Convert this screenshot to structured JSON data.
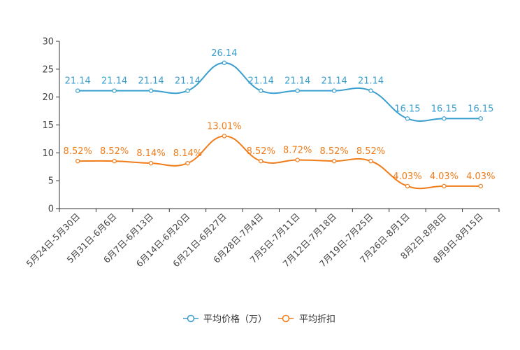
{
  "chart_data": {
    "type": "line",
    "title": "",
    "xlabel": "",
    "ylabel": "",
    "ylim": [
      0,
      30
    ],
    "yticks": [
      0,
      5,
      10,
      15,
      20,
      25,
      30
    ],
    "grid": false,
    "legend_position": "bottom-center",
    "categories": [
      "5月24日-5月30日",
      "5月31日-6月6日",
      "6月7日-6月13日",
      "6月14日-6月20日",
      "6月21日-6月27日",
      "6月28日-7月4日",
      "7月5日-7月11日",
      "7月12日-7月18日",
      "7月19日-7月25日",
      "7月26日-8月1日",
      "8月2日-8月8日",
      "8月9日-8月15日"
    ],
    "series": [
      {
        "name": "平均价格（万）",
        "color": "#3a9fcf",
        "values": [
          21.14,
          21.14,
          21.14,
          21.14,
          26.14,
          21.14,
          21.14,
          21.14,
          21.14,
          16.15,
          16.15,
          16.15
        ],
        "labels": [
          "21.14",
          "21.14",
          "21.14",
          "21.14",
          "26.14",
          "21.14",
          "21.14",
          "21.14",
          "21.14",
          "16.15",
          "16.15",
          "16.15"
        ]
      },
      {
        "name": "平均折扣",
        "color": "#f07c1a",
        "values": [
          8.52,
          8.52,
          8.14,
          8.14,
          13.01,
          8.52,
          8.72,
          8.52,
          8.52,
          4.03,
          4.03,
          4.03
        ],
        "labels": [
          "8.52%",
          "8.52%",
          "8.14%",
          "8.14%",
          "13.01%",
          "8.52%",
          "8.72%",
          "8.52%",
          "8.52%",
          "4.03%",
          "4.03%",
          "4.03%"
        ]
      }
    ]
  }
}
